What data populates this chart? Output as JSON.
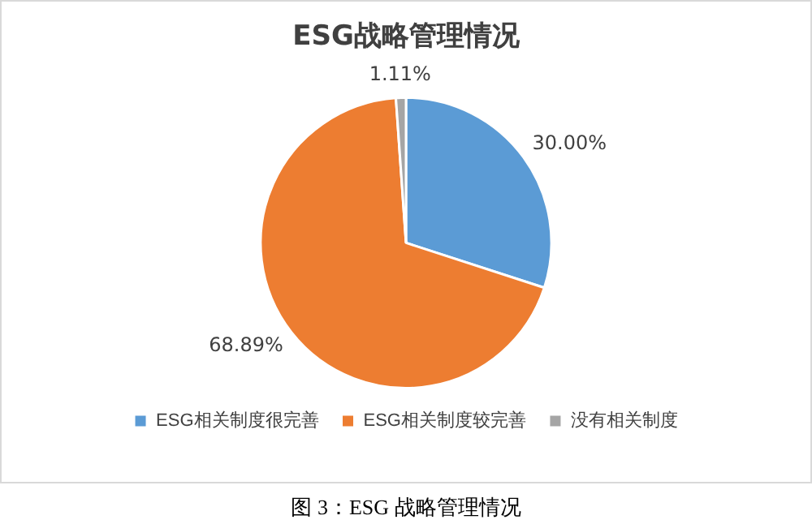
{
  "chart_data": {
    "type": "pie",
    "title": "ESG战略管理情况",
    "categories": [
      "ESG相关制度很完善",
      "ESG相关制度较完善",
      "没有相关制度"
    ],
    "values": [
      30.0,
      68.89,
      1.11
    ],
    "colors": [
      "#5b9bd5",
      "#ed7d31",
      "#a5a5a5"
    ],
    "value_labels": [
      "30.00%",
      "68.89%",
      "1.11%"
    ],
    "legend": "bottom",
    "annotations": [
      "图 3：ESG 战略管理情况"
    ]
  }
}
